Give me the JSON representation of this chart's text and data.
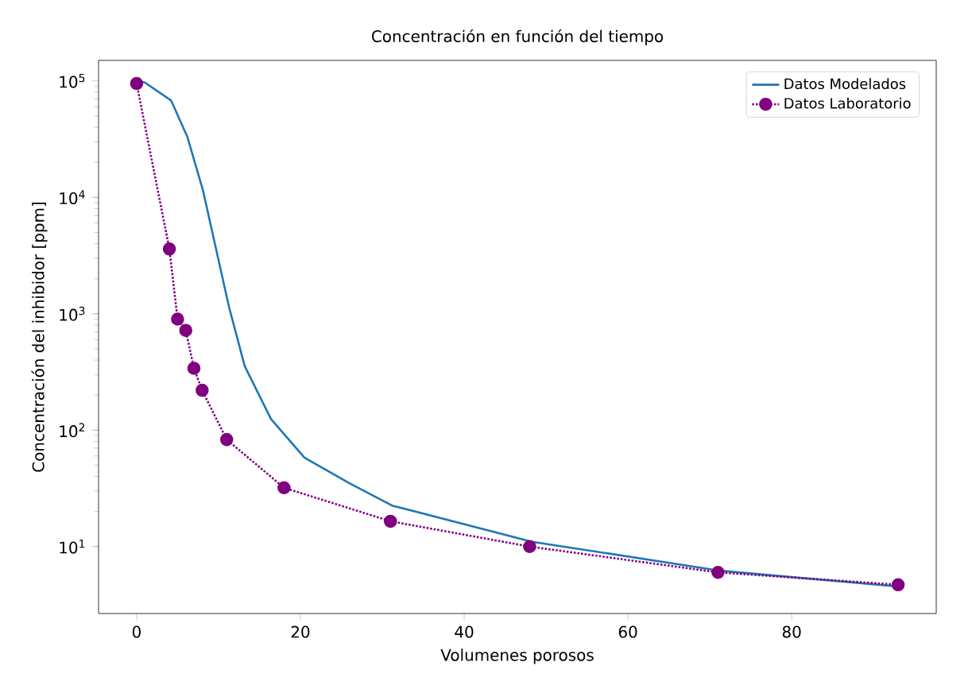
{
  "chart_data": {
    "type": "line",
    "title": "Concentración en función del tiempo",
    "xlabel": "Volumenes porosos",
    "ylabel": "Concentración del inhibidor [ppm]",
    "log": "y",
    "grid": false,
    "legend": "top right",
    "xlim": [
      -4.65,
      97.65
    ],
    "xticks": [
      0,
      20,
      40,
      60,
      80
    ],
    "ylim": [
      2.66,
      150000
    ],
    "yticks": [
      {
        "value": 10,
        "label": "10$^{1}$"
      },
      {
        "value": 100,
        "label": "10$^{2}$"
      },
      {
        "value": 1000,
        "label": "10$^{3}$"
      },
      {
        "value": 10000,
        "label": "10$^{4}$"
      },
      {
        "value": 100000,
        "label": "10$^{5}$"
      }
    ],
    "series": [
      {
        "name": "Datos Modelados",
        "color": "#1f77b4",
        "marker": "none",
        "line_style": "solid",
        "x": [
          0,
          1,
          4.2,
          6.2,
          8.1,
          9.7,
          11.3,
          13.2,
          16.4,
          20.5,
          26,
          31.2,
          48.3,
          71.3,
          93.5
        ],
        "values": [
          100000,
          97000,
          68000,
          33000,
          11500,
          3600,
          1130,
          355,
          125,
          58,
          35,
          22.5,
          11,
          6.2,
          4.5
        ]
      },
      {
        "name": "Datos Laboratorio",
        "color": "#800080",
        "marker": "circle",
        "line_style": "dotted",
        "x": [
          0,
          4,
          5,
          6,
          7,
          8,
          11,
          18,
          31,
          48,
          71,
          93
        ],
        "values": [
          95000,
          3600,
          900,
          720,
          340,
          220,
          83,
          32,
          16.5,
          10,
          6,
          4.7
        ]
      }
    ]
  }
}
